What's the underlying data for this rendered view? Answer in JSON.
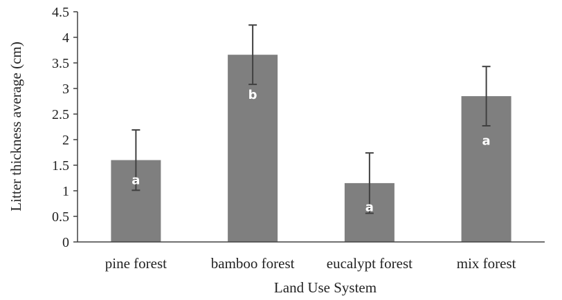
{
  "chart_data": {
    "type": "bar",
    "title": "",
    "xlabel": "Land Use System",
    "ylabel": "Litter thickness average (cm)",
    "categories": [
      "pine forest",
      "bamboo forest",
      "eucalypt forest",
      "mix forest"
    ],
    "values": [
      1.6,
      3.66,
      1.15,
      2.85
    ],
    "error": [
      0.59,
      0.58,
      0.59,
      0.58
    ],
    "data_labels": [
      "a",
      "b",
      "a",
      "a"
    ],
    "data_label_values": [
      1.13,
      2.8,
      0.6,
      1.9
    ],
    "ylim": [
      0,
      4.5
    ],
    "yticks": [
      "0",
      "0.5",
      "1",
      "1.5",
      "2",
      "2.5",
      "3",
      "3.5",
      "4",
      "4.5"
    ],
    "grid": false,
    "legend": "none",
    "bar_color": "#7f7f7f",
    "error_color": "#404040",
    "axis_color": "#404040"
  }
}
